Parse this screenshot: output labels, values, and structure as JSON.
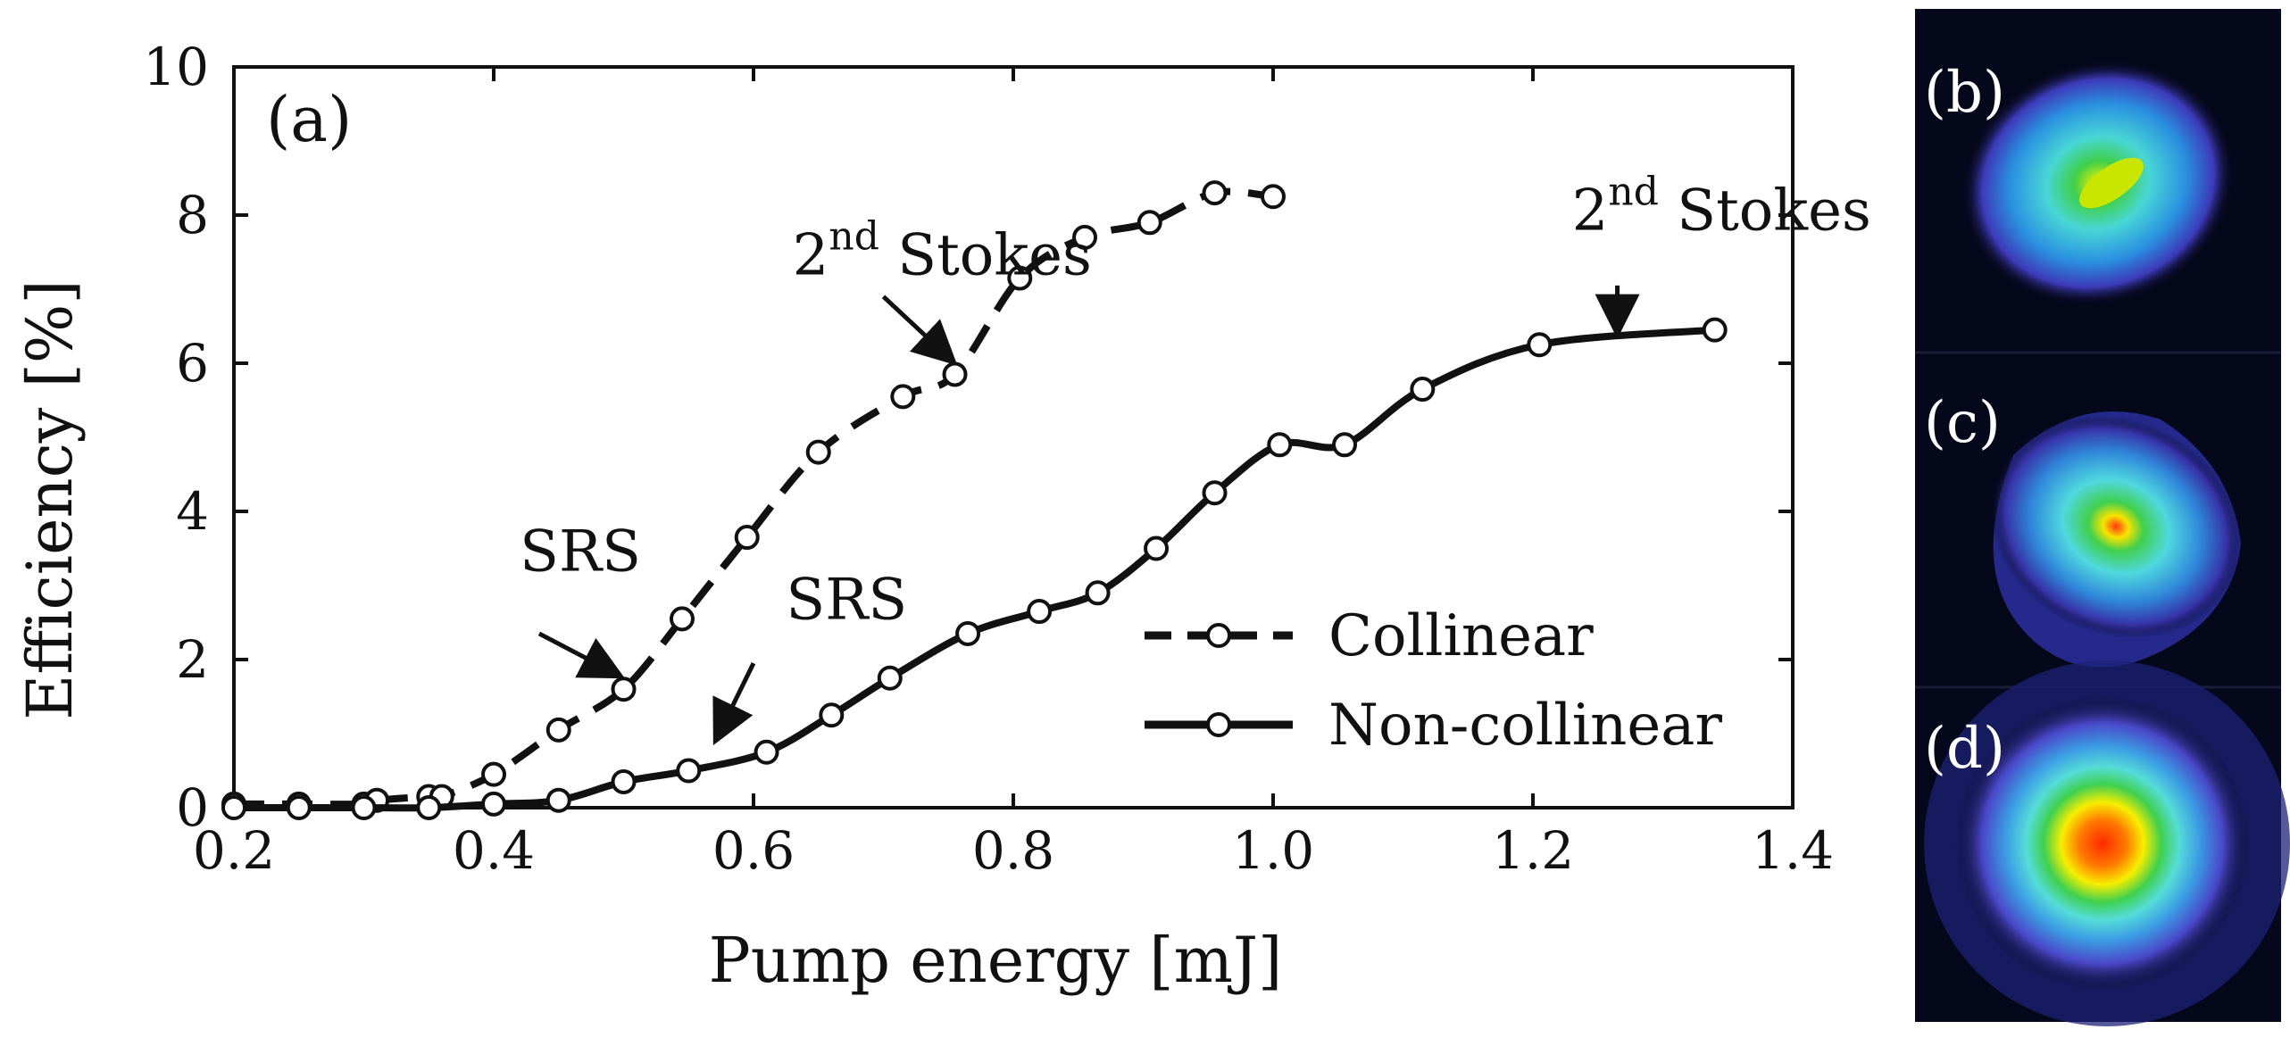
{
  "chart_data": {
    "type": "line",
    "panel_label": "(a)",
    "xlabel": "Pump energy [mJ]",
    "ylabel": "Efficiency [%]",
    "xlim": [
      0.2,
      1.4
    ],
    "ylim": [
      0,
      10
    ],
    "x_ticks": [
      "0.2",
      "0.4",
      "0.6",
      "0.8",
      "1.0",
      "1.2",
      "1.4"
    ],
    "y_ticks": [
      "0",
      "2",
      "4",
      "6",
      "8",
      "10"
    ],
    "grid": false,
    "legend_position": "lower-right",
    "series": [
      {
        "name": "Collinear",
        "style": "dashed",
        "x": [
          0.2,
          0.25,
          0.3,
          0.31,
          0.35,
          0.36,
          0.4,
          0.45,
          0.5,
          0.545,
          0.595,
          0.65,
          0.715,
          0.755,
          0.805,
          0.855,
          0.905,
          0.955,
          1.0
        ],
        "y": [
          0.05,
          0.05,
          0.05,
          0.1,
          0.15,
          0.15,
          0.45,
          1.05,
          1.6,
          2.55,
          3.65,
          4.8,
          5.55,
          5.85,
          7.15,
          7.7,
          7.9,
          8.3,
          8.25
        ]
      },
      {
        "name": "Non-collinear",
        "style": "solid",
        "x": [
          0.2,
          0.25,
          0.3,
          0.35,
          0.4,
          0.45,
          0.5,
          0.55,
          0.61,
          0.66,
          0.705,
          0.765,
          0.82,
          0.865,
          0.91,
          0.955,
          1.005,
          1.055,
          1.115,
          1.205,
          1.34
        ],
        "y": [
          0.0,
          0.0,
          0.0,
          0.0,
          0.05,
          0.1,
          0.35,
          0.5,
          0.75,
          1.25,
          1.75,
          2.35,
          2.65,
          2.9,
          3.5,
          4.25,
          4.9,
          4.9,
          5.65,
          6.25,
          6.45
        ]
      }
    ],
    "annotations": [
      {
        "text": "SRS",
        "series": "Collinear",
        "text_at": [
          0.42,
          3.2
        ],
        "arrow_from": [
          0.435,
          2.35
        ],
        "arrow_to": [
          0.495,
          1.8
        ]
      },
      {
        "text": "SRS",
        "series": "Non-collinear",
        "text_at": [
          0.625,
          2.55
        ],
        "arrow_from": [
          0.6,
          1.95
        ],
        "arrow_to": [
          0.572,
          0.95
        ]
      },
      {
        "text": "2",
        "superscript": "nd",
        "suffix": " Stokes",
        "series": "Collinear",
        "text_at": [
          0.63,
          7.2
        ],
        "arrow_from": [
          0.7,
          6.9
        ],
        "arrow_to": [
          0.752,
          6.05
        ]
      },
      {
        "text": "2",
        "superscript": "nd",
        "suffix": " Stokes",
        "series": "Non-collinear",
        "text_at": [
          1.23,
          7.8
        ],
        "arrow_from": [
          1.265,
          7.05
        ],
        "arrow_to": [
          1.265,
          6.45
        ]
      }
    ]
  },
  "side_panels": [
    {
      "label": "(b)"
    },
    {
      "label": "(c)"
    },
    {
      "label": "(d)"
    }
  ],
  "colors": {
    "line": "#111111",
    "panel_background": "#05071a"
  }
}
